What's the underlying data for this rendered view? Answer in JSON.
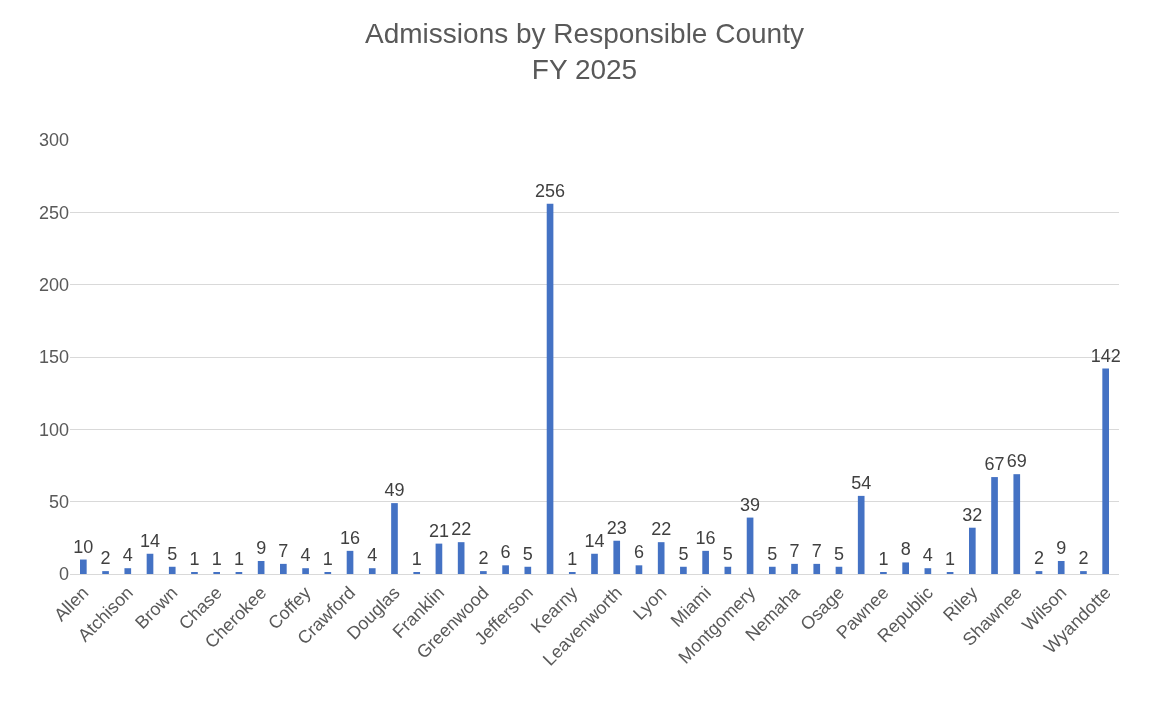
{
  "chart_data": {
    "type": "bar",
    "title": "Admissions by Responsible County\nFY 2025",
    "categories": [
      "Allen",
      null,
      "Atchison",
      null,
      "Brown",
      null,
      "Chase",
      null,
      "Cherokee",
      null,
      "Coffey",
      null,
      "Crawford",
      null,
      "Douglas",
      null,
      "Franklin",
      null,
      "Greenwood",
      null,
      "Jefferson",
      null,
      "Kearny",
      null,
      "Leavenworth",
      null,
      "Lyon",
      null,
      "Miami",
      null,
      "Montgomery",
      null,
      "Nemaha",
      null,
      "Osage",
      null,
      "Pawnee",
      null,
      "Republic",
      null,
      "Riley",
      null,
      "Shawnee",
      null,
      "Wilson",
      null,
      "Wyandotte"
    ],
    "values": [
      10,
      2,
      4,
      14,
      5,
      1,
      1,
      1,
      9,
      7,
      4,
      1,
      16,
      4,
      49,
      1,
      21,
      22,
      2,
      6,
      5,
      256,
      1,
      14,
      23,
      6,
      22,
      5,
      16,
      5,
      39,
      5,
      7,
      7,
      5,
      54,
      1,
      8,
      4,
      1,
      32,
      67,
      69,
      2,
      9,
      2,
      142
    ],
    "color": "#4472c4",
    "ylim": [
      0,
      300
    ],
    "yticks": [
      0,
      50,
      100,
      150,
      200,
      250,
      300
    ],
    "grid": "y",
    "data_labels": true
  }
}
